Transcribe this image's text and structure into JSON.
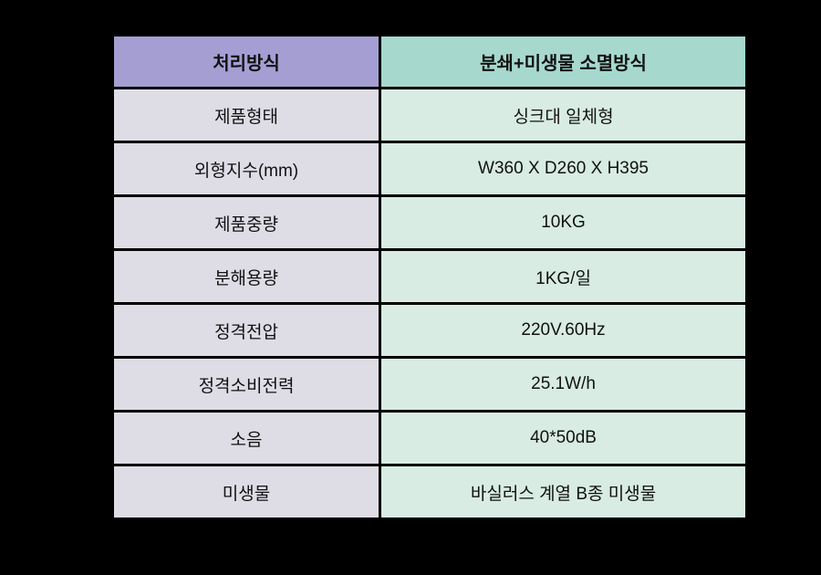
{
  "table": {
    "header": {
      "col1": "처리방식",
      "col2": "분쇄+미생물 소멸방식"
    },
    "rows": [
      {
        "label": "제품형태",
        "value": "싱크대 일체형"
      },
      {
        "label": "외형지수(mm)",
        "value": "W360 X D260 X H395"
      },
      {
        "label": "제품중량",
        "value": "10KG"
      },
      {
        "label": "분해용량",
        "value": "1KG/일"
      },
      {
        "label": "정격전압",
        "value": "220V.60Hz"
      },
      {
        "label": "정격소비전력",
        "value": "25.1W/h"
      },
      {
        "label": "소음",
        "value": "40*50dB"
      },
      {
        "label": "미생물",
        "value": "바실러스 계열 B종 미생물"
      }
    ],
    "colors": {
      "page_bg": "#000000",
      "border": "#000000",
      "header_left_bg": "#a59ed3",
      "header_right_bg": "#a6d8ce",
      "body_left_bg": "#dedde6",
      "body_right_bg": "#d8ece3",
      "last_divider": "#4d4d4d",
      "text": "#111111"
    }
  }
}
